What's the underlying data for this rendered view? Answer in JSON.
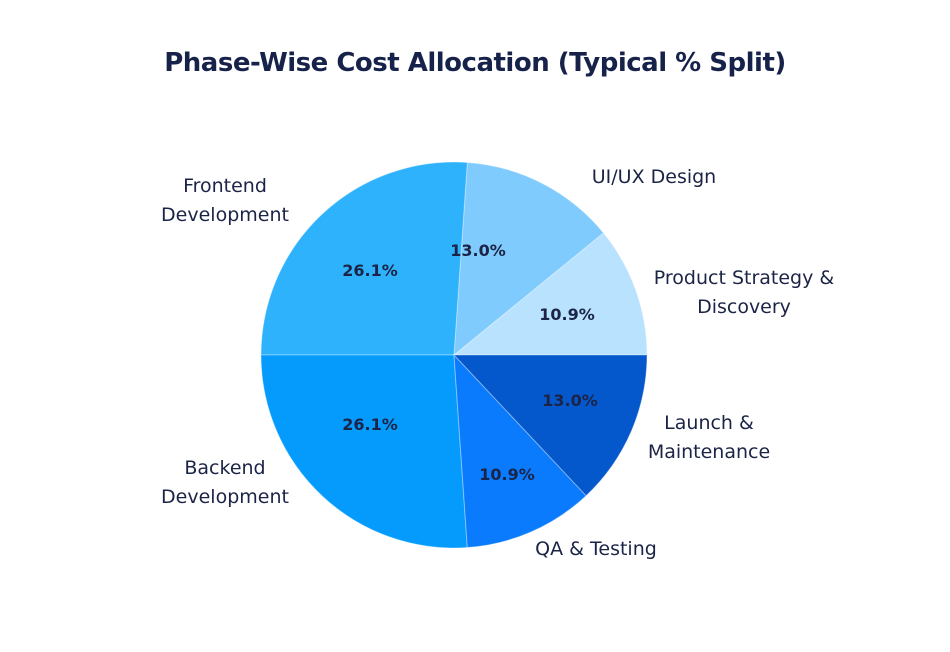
{
  "chart_data": {
    "type": "pie",
    "title": "Phase-Wise Cost Allocation (Typical % Split)",
    "slices": [
      {
        "label": [
          "Product Strategy &",
          "Discovery"
        ],
        "value": 10.9,
        "display": "10.9%",
        "color": "#b8e2fd"
      },
      {
        "label": [
          "UI/UX Design"
        ],
        "value": 13.0,
        "display": "13.0%",
        "color": "#80cbfd"
      },
      {
        "label": [
          "Frontend",
          "Development"
        ],
        "value": 26.1,
        "display": "26.1%",
        "color": "#2fb2fc"
      },
      {
        "label": [
          "Backend",
          "Development"
        ],
        "value": 26.1,
        "display": "26.1%",
        "color": "#049bfc"
      },
      {
        "label": [
          "QA & Testing"
        ],
        "value": 10.9,
        "display": "10.9%",
        "color": "#0a7bfd"
      },
      {
        "label": [
          "Launch &",
          "Maintenance"
        ],
        "value": 13.0,
        "display": "13.0%",
        "color": "#0458cc"
      }
    ],
    "start": "right",
    "direction": "counterclockwise"
  }
}
